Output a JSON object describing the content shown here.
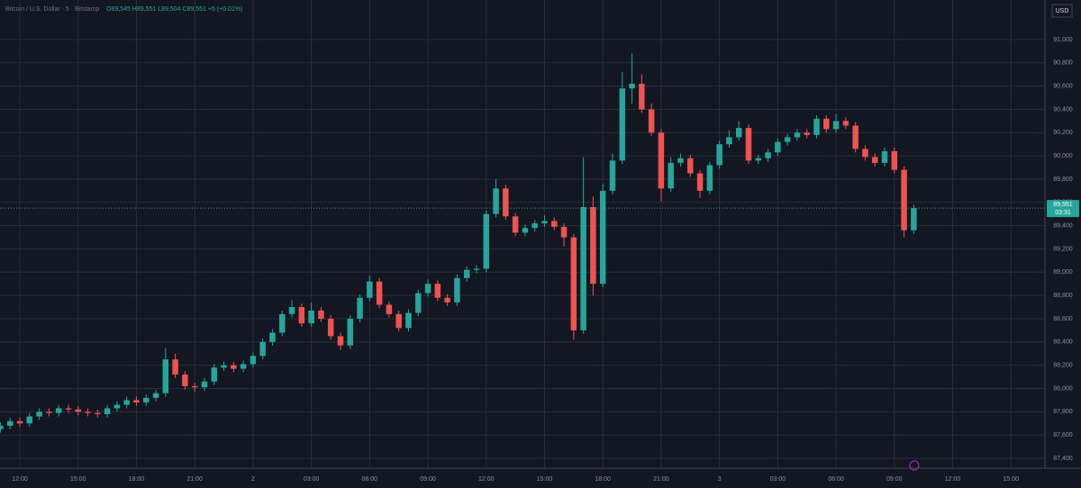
{
  "chart_data": {
    "type": "candlestick",
    "symbol": "Bitcoin / U.S. Dollar · 5 · Bitstamp",
    "ohlc_label": "O89,545 H89,551 L89,504 C89,551 +5 (+0.01%)",
    "currency": "USD",
    "last_price_label": "89,551",
    "countdown": "03:31",
    "up_color": "#26a69a",
    "down_color": "#ef5350",
    "grid": true,
    "x": [
      -1,
      -0.5,
      0,
      0.5,
      1,
      1.5,
      2,
      2.5,
      3,
      3.5,
      4,
      4.5,
      5,
      5.5,
      6,
      6.5,
      7,
      7.5,
      8,
      8.5,
      9,
      9.5,
      10,
      10.5,
      11,
      11.5,
      12,
      12.5,
      13,
      13.5,
      14,
      14.5,
      15,
      15.5,
      16,
      16.5,
      17,
      17.5,
      18,
      18.5,
      19,
      19.5,
      20,
      20.5,
      21,
      21.5,
      22,
      22.5,
      23,
      23.5,
      24,
      24.5,
      25,
      25.5,
      26,
      26.5,
      27,
      27.5,
      28,
      28.5,
      29,
      29.5,
      30,
      30.5,
      31,
      31.5,
      32,
      32.5,
      33,
      33.5,
      34,
      34.5,
      35,
      35.5,
      36,
      36.5,
      37,
      37.5,
      38,
      38.5,
      39,
      39.5,
      40,
      40.5,
      41,
      41.5,
      42,
      42.5,
      43,
      43.5,
      44,
      44.5,
      45,
      45.5,
      46
    ],
    "open": [
      87650,
      87680,
      87720,
      87700,
      87760,
      87800,
      87790,
      87830,
      87820,
      87800,
      87790,
      87780,
      87830,
      87860,
      87900,
      87880,
      87920,
      87960,
      88250,
      88120,
      88020,
      88010,
      88060,
      88180,
      88200,
      88170,
      88210,
      88280,
      88400,
      88480,
      88640,
      88700,
      88560,
      88670,
      88600,
      88450,
      88370,
      88600,
      88780,
      88920,
      88720,
      88640,
      88520,
      88650,
      88820,
      88900,
      88780,
      88740,
      88950,
      89020,
      89030,
      89500,
      89720,
      89480,
      89340,
      89380,
      89420,
      89440,
      89390,
      89300,
      88500,
      89560,
      88900,
      89700,
      89960,
      90580,
      90620,
      90400,
      90200,
      89720,
      89940,
      89980,
      89850,
      89700,
      89920,
      90100,
      90160,
      90240,
      89960,
      89980,
      90030,
      90120,
      90160,
      90200,
      90180,
      90320,
      90230,
      90300,
      90260,
      90060,
      89990,
      89940,
      90040,
      89880,
      89360
    ],
    "high": [
      87710,
      87750,
      87750,
      87790,
      87830,
      87830,
      87860,
      87860,
      87850,
      87830,
      87820,
      87860,
      87890,
      87930,
      87930,
      87950,
      87990,
      88350,
      88300,
      88150,
      88050,
      88090,
      88210,
      88230,
      88230,
      88240,
      88310,
      88430,
      88510,
      88670,
      88760,
      88730,
      88740,
      88700,
      88630,
      88480,
      88630,
      88810,
      88970,
      88950,
      88750,
      88670,
      88680,
      88850,
      88940,
      88930,
      88810,
      88980,
      89050,
      89060,
      89530,
      89800,
      89750,
      89510,
      89410,
      89450,
      89490,
      89470,
      89420,
      89330,
      89990,
      89650,
      89760,
      90020,
      90720,
      90880,
      90700,
      90450,
      90230,
      89990,
      90020,
      90010,
      89880,
      89950,
      90130,
      90220,
      90300,
      90270,
      90010,
      90060,
      90150,
      90190,
      90230,
      90230,
      90350,
      90350,
      90360,
      90330,
      90290,
      90090,
      90020,
      90070,
      90070,
      89910,
      89580
    ],
    "low": [
      87620,
      87650,
      87670,
      87670,
      87730,
      87760,
      87760,
      87790,
      87770,
      87760,
      87750,
      87750,
      87800,
      87830,
      87850,
      87850,
      87890,
      87930,
      88090,
      87990,
      87970,
      87980,
      88030,
      88150,
      88140,
      88140,
      88180,
      88250,
      88370,
      88450,
      88610,
      88530,
      88530,
      88570,
      88420,
      88330,
      88340,
      88570,
      88750,
      88690,
      88610,
      88490,
      88490,
      88620,
      88790,
      88750,
      88710,
      88710,
      88920,
      88990,
      89000,
      89470,
      89450,
      89310,
      89310,
      89350,
      89390,
      89360,
      89220,
      88420,
      88470,
      88800,
      88870,
      89670,
      89930,
      90450,
      90370,
      90170,
      89610,
      89690,
      89910,
      89820,
      89640,
      89670,
      89890,
      90070,
      90130,
      89930,
      89930,
      89950,
      90000,
      90090,
      90130,
      90150,
      90150,
      90200,
      90200,
      90230,
      90030,
      89960,
      89910,
      89910,
      89850,
      89300,
      89330
    ],
    "close": [
      87680,
      87720,
      87700,
      87760,
      87800,
      87790,
      87830,
      87820,
      87800,
      87790,
      87780,
      87830,
      87860,
      87900,
      87880,
      87920,
      87960,
      88250,
      88120,
      88020,
      88010,
      88060,
      88180,
      88200,
      88170,
      88210,
      88280,
      88400,
      88480,
      88640,
      88700,
      88560,
      88670,
      88600,
      88450,
      88370,
      88600,
      88780,
      88920,
      88720,
      88640,
      88520,
      88650,
      88820,
      88900,
      88780,
      88740,
      88950,
      89020,
      89030,
      89500,
      89720,
      89480,
      89340,
      89380,
      89420,
      89440,
      89390,
      89300,
      88500,
      89560,
      88900,
      89700,
      89960,
      90580,
      90620,
      90400,
      90200,
      89720,
      89940,
      89980,
      89850,
      89700,
      89920,
      90100,
      90160,
      90240,
      89960,
      89980,
      90030,
      90120,
      90160,
      90200,
      90180,
      90320,
      90230,
      90300,
      90260,
      90060,
      89990,
      89940,
      90040,
      89880,
      89360,
      89551
    ],
    "xlim": [
      -1.02,
      52.75
    ],
    "xticks": [
      {
        "value": 0,
        "label": "12:00"
      },
      {
        "value": 3,
        "label": "15:00"
      },
      {
        "value": 6,
        "label": "18:00"
      },
      {
        "value": 9,
        "label": "21:00"
      },
      {
        "value": 12,
        "label": "2"
      },
      {
        "value": 15,
        "label": "03:00"
      },
      {
        "value": 18,
        "label": "06:00"
      },
      {
        "value": 21,
        "label": "09:00"
      },
      {
        "value": 24,
        "label": "12:00"
      },
      {
        "value": 27,
        "label": "15:00"
      },
      {
        "value": 30,
        "label": "18:00"
      },
      {
        "value": 33,
        "label": "21:00"
      },
      {
        "value": 36,
        "label": "3"
      },
      {
        "value": 39,
        "label": "03:00"
      },
      {
        "value": 42,
        "label": "06:00"
      },
      {
        "value": 45,
        "label": "09:00"
      },
      {
        "value": 48,
        "label": "12:00"
      },
      {
        "value": 51,
        "label": "15:00"
      }
    ],
    "ylim": [
      87315,
      91340
    ],
    "yticks": [
      {
        "value": 87400,
        "label": "87,400"
      },
      {
        "value": 87600,
        "label": "87,600"
      },
      {
        "value": 87800,
        "label": "87,800"
      },
      {
        "value": 88000,
        "label": "88,000"
      },
      {
        "value": 88200,
        "label": "88,200"
      },
      {
        "value": 88400,
        "label": "88,400"
      },
      {
        "value": 88600,
        "label": "88,600"
      },
      {
        "value": 88800,
        "label": "88,800"
      },
      {
        "value": 89000,
        "label": "89,000"
      },
      {
        "value": 89200,
        "label": "89,200"
      },
      {
        "value": 89400,
        "label": "89,400"
      },
      {
        "value": 89600,
        "label": "89,600"
      },
      {
        "value": 89800,
        "label": "89,800"
      },
      {
        "value": 90000,
        "label": "90,000"
      },
      {
        "value": 90200,
        "label": "90,200"
      },
      {
        "value": 90400,
        "label": "90,400"
      },
      {
        "value": 90600,
        "label": "90,600"
      },
      {
        "value": 90800,
        "label": "90,800"
      },
      {
        "value": 91000,
        "label": "91,000"
      }
    ]
  }
}
